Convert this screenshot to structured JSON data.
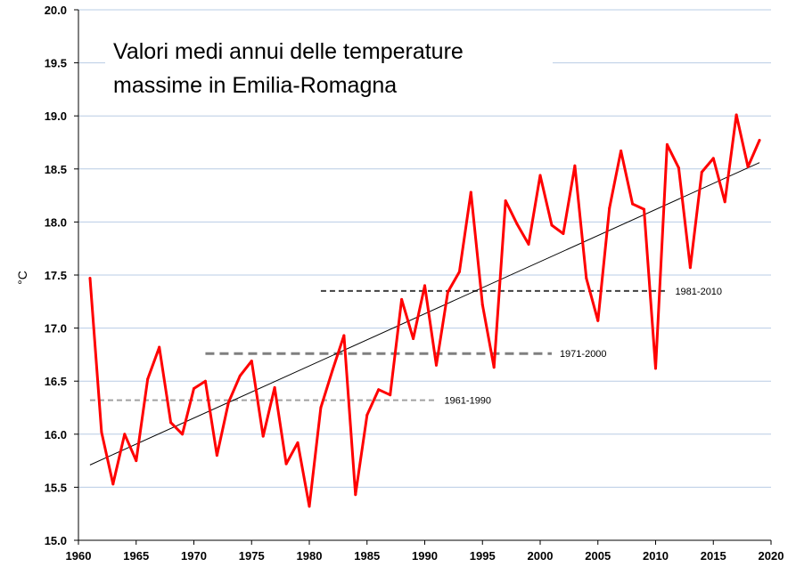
{
  "chart_data": {
    "type": "line",
    "title_line1": "Valori medi annui delle temperature",
    "title_line2": "massime in Emilia-Romagna",
    "xlabel": "",
    "ylabel": "°C",
    "xlim": [
      1960,
      2020
    ],
    "ylim": [
      15.0,
      20.0
    ],
    "x_ticks": [
      1960,
      1965,
      1970,
      1975,
      1980,
      1985,
      1990,
      1995,
      2000,
      2005,
      2010,
      2015,
      2020
    ],
    "y_ticks": [
      "15.0",
      "15.5",
      "16.0",
      "16.5",
      "17.0",
      "17.5",
      "18.0",
      "18.5",
      "19.0",
      "19.5",
      "20.0"
    ],
    "grid": "horizontal",
    "series": [
      {
        "color": "#ff0000",
        "x": [
          1961,
          1962,
          1963,
          1964,
          1965,
          1966,
          1967,
          1968,
          1969,
          1970,
          1971,
          1972,
          1973,
          1974,
          1975,
          1976,
          1977,
          1978,
          1979,
          1980,
          1981,
          1982,
          1983,
          1984,
          1985,
          1986,
          1987,
          1988,
          1989,
          1990,
          1991,
          1992,
          1993,
          1994,
          1995,
          1996,
          1997,
          1998,
          1999,
          2000,
          2001,
          2002,
          2003,
          2004,
          2005,
          2006,
          2007,
          2008,
          2009,
          2010,
          2011,
          2012,
          2013,
          2014,
          2015,
          2016,
          2017,
          2018,
          2019
        ],
        "y": [
          17.47,
          16.02,
          15.53,
          16.0,
          15.75,
          16.52,
          16.82,
          16.11,
          16.0,
          16.43,
          16.5,
          15.8,
          16.3,
          16.55,
          16.69,
          15.98,
          16.44,
          15.72,
          15.92,
          15.32,
          16.25,
          16.6,
          16.93,
          15.43,
          16.18,
          16.42,
          16.37,
          17.27,
          16.9,
          17.4,
          16.65,
          17.34,
          17.53,
          18.28,
          17.22,
          16.63,
          18.2,
          17.98,
          17.79,
          18.44,
          17.97,
          17.89,
          18.53,
          17.47,
          17.07,
          18.13,
          18.67,
          18.17,
          18.12,
          16.62,
          18.73,
          18.51,
          17.57,
          18.47,
          18.6,
          18.19,
          19.01,
          18.52,
          18.77
        ]
      }
    ],
    "trend": {
      "color": "#000000",
      "x": [
        1961,
        2019
      ],
      "y": [
        15.71,
        18.56
      ]
    },
    "reference_lines": [
      {
        "label": "1961-1990",
        "x_start": 1961,
        "x_end": 1991,
        "value": 16.32,
        "color": "#a0a0a0",
        "dash": "6 4"
      },
      {
        "label": "1971-2000",
        "x_start": 1971,
        "x_end": 2001,
        "value": 16.76,
        "color": "#7f7f7f",
        "dash": "10 6"
      },
      {
        "label": "1981-2010",
        "x_start": 1981,
        "x_end": 2011,
        "value": 17.35,
        "color": "#404040",
        "dash": "6 4"
      }
    ]
  }
}
